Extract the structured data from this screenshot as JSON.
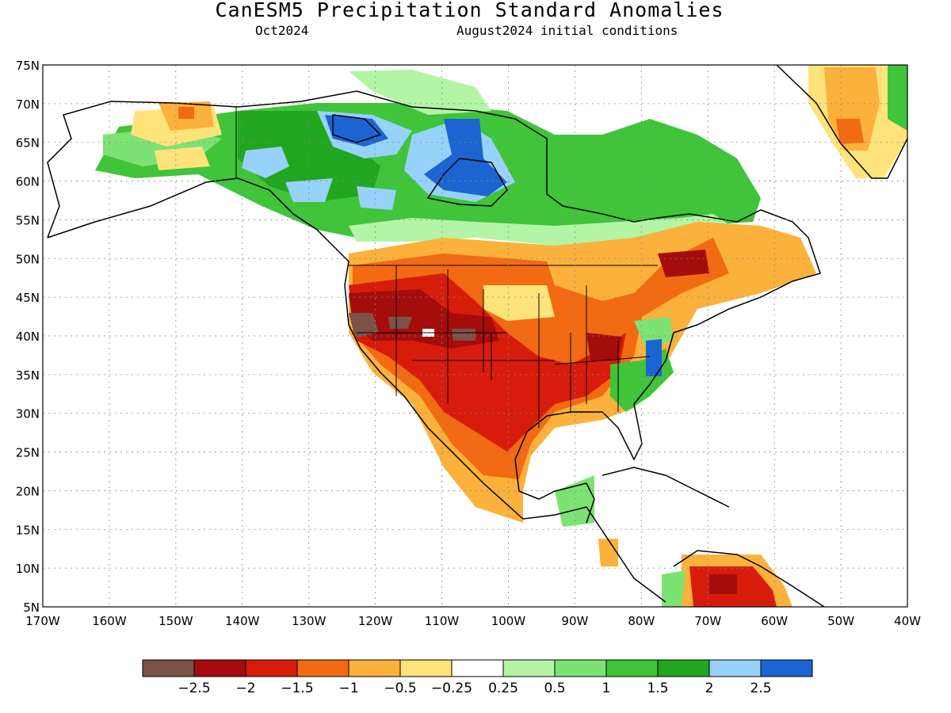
{
  "title": "CanESM5 Precipitation Standard Anomalies",
  "subtitle_left": "Oct2024",
  "subtitle_right": "August2024 initial conditions",
  "lat_labels": [
    "75N",
    "70N",
    "65N",
    "60N",
    "55N",
    "50N",
    "45N",
    "40N",
    "35N",
    "30N",
    "25N",
    "20N",
    "15N",
    "10N",
    "5N"
  ],
  "lon_labels": [
    "170W",
    "160W",
    "150W",
    "140W",
    "130W",
    "120W",
    "110W",
    "100W",
    "90W",
    "80W",
    "70W",
    "60W",
    "50W",
    "40W"
  ],
  "lon_range": [
    -170,
    -40
  ],
  "lat_range": [
    5,
    75
  ],
  "colorbar": {
    "colors": [
      "#7a5248",
      "#a50d0d",
      "#d81c0c",
      "#f26a12",
      "#fbb13c",
      "#fde37a",
      "#ffffff",
      "#b3f5a4",
      "#7ce273",
      "#3fc43a",
      "#21a61f",
      "#96d2fa",
      "#1c64d2"
    ],
    "labels": [
      "-2.5",
      "-2",
      "-1.5",
      "-1",
      "-0.5",
      "-0.25",
      "0.25",
      "0.5",
      "1",
      "1.5",
      "2",
      "2.5"
    ]
  }
}
